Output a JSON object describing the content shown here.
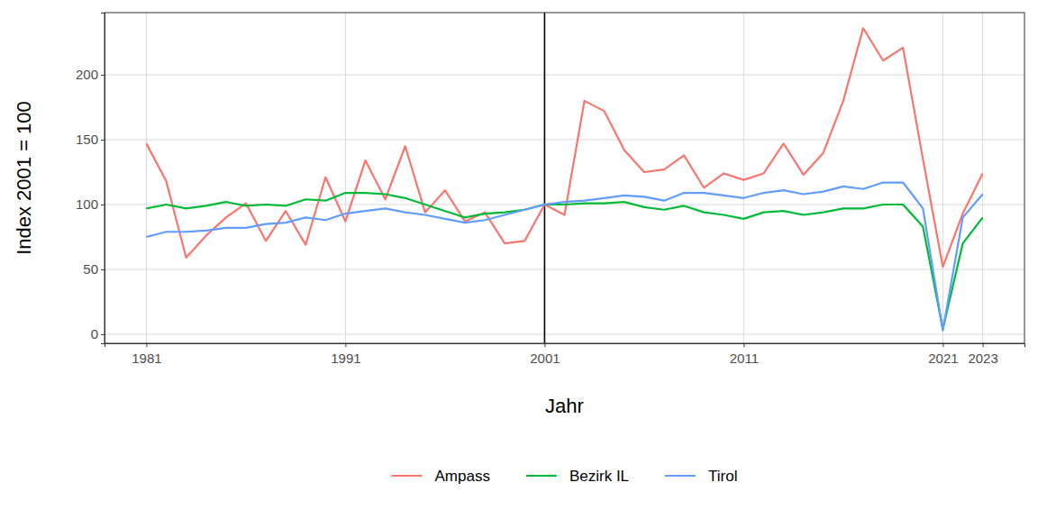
{
  "chart_data": {
    "type": "line",
    "x_label": "Jahr",
    "y_label": "Index 2001 = 100",
    "x": [
      1981,
      1982,
      1983,
      1984,
      1985,
      1986,
      1987,
      1988,
      1989,
      1990,
      1991,
      1992,
      1993,
      1994,
      1995,
      1996,
      1997,
      1998,
      1999,
      2000,
      2001,
      2002,
      2003,
      2004,
      2005,
      2006,
      2007,
      2008,
      2009,
      2010,
      2011,
      2012,
      2013,
      2014,
      2015,
      2016,
      2017,
      2018,
      2019,
      2020,
      2021,
      2022,
      2023
    ],
    "series": [
      {
        "name": "Ampass",
        "color": "#F8766D",
        "values": [
          147,
          118,
          59,
          76,
          90,
          101,
          72,
          95,
          69,
          121,
          87,
          134,
          104,
          145,
          94,
          111,
          87,
          94,
          70,
          72,
          100,
          92,
          180,
          172,
          142,
          125,
          127,
          138,
          113,
          124,
          119,
          124,
          147,
          123,
          140,
          180,
          236,
          211,
          221,
          135,
          52,
          93,
          124
        ]
      },
      {
        "name": "Bezirk IL",
        "color": "#00BA38",
        "values": [
          97,
          100,
          97,
          99,
          102,
          99,
          100,
          99,
          104,
          103,
          109,
          109,
          108,
          105,
          100,
          95,
          90,
          93,
          94,
          96,
          100,
          100,
          101,
          101,
          102,
          98,
          96,
          99,
          94,
          92,
          89,
          94,
          95,
          92,
          94,
          97,
          97,
          100,
          100,
          83,
          4,
          70,
          90
        ]
      },
      {
        "name": "Tirol",
        "color": "#619CFF",
        "values": [
          75,
          79,
          79,
          80,
          82,
          82,
          85,
          86,
          90,
          88,
          93,
          95,
          97,
          94,
          92,
          89,
          86,
          88,
          92,
          96,
          100,
          102,
          103,
          105,
          107,
          106,
          103,
          109,
          109,
          107,
          105,
          109,
          111,
          108,
          110,
          114,
          112,
          117,
          117,
          97,
          3,
          90,
          108
        ]
      }
    ],
    "vline": 2001,
    "xlim": [
      1978.9,
      2025.1
    ],
    "xticks": [
      1981,
      1991,
      2001,
      2011,
      2021,
      2023
    ],
    "ylim": [
      -7,
      248
    ],
    "yticks": [
      0,
      50,
      100,
      150,
      200
    ],
    "grid": true,
    "legend": "bottom"
  }
}
